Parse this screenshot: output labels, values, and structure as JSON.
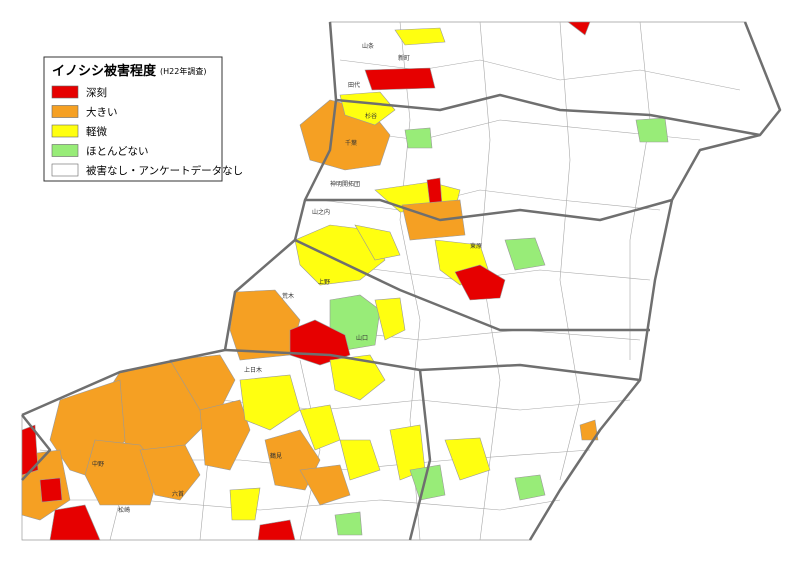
{
  "legend": {
    "title": "イノシシ被害程度",
    "subtitle": "(H22年調査)",
    "items": [
      {
        "label": "深刻",
        "color": "#e60000"
      },
      {
        "label": "大きい",
        "color": "#f5a023"
      },
      {
        "label": "軽微",
        "color": "#ffff10"
      },
      {
        "label": "ほとんどない",
        "color": "#98ec78"
      },
      {
        "label": "被害なし・アンケートデータなし",
        "color": "#ffffff"
      }
    ]
  },
  "places": [
    "山条",
    "田代",
    "千葉",
    "杉谷",
    "上野",
    "荒木",
    "山口",
    "中野",
    "松崎",
    "六首",
    "上日木",
    "神明開拓団",
    "山之内",
    "鶴見",
    "東原",
    "新町"
  ]
}
